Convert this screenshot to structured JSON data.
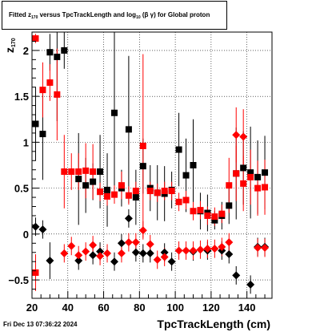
{
  "title": {
    "prefix": "Fitted",
    "z": "z",
    "z_sub": "170",
    "middle": "versus TpcTrackLength and log",
    "log_sub": "10",
    "beta_gamma": "(β γ)",
    "suffix": "for Global proton"
  },
  "timestamp": "Fri Dec 13 07:36:22 2024",
  "colors": {
    "red": "#ff0000",
    "black": "#000000",
    "grid": "#000000"
  },
  "chart_data": {
    "type": "scatter",
    "title": "Fitted z170 versus TpcTrackLength and log10(β γ) for Global proton",
    "xlabel": "TpcTrackLength (cm)",
    "ylabel": "z",
    "ylabel_sub": "170",
    "xlim": [
      20,
      154
    ],
    "ylim": [
      -0.7,
      2.2
    ],
    "xticks": [
      20,
      40,
      60,
      80,
      100,
      120,
      140
    ],
    "yticks": [
      -0.5,
      0,
      0.5,
      1,
      1.5,
      2
    ],
    "ytick_labels": [
      "−0.5",
      "0",
      "0.5",
      "1",
      "1.5",
      "2"
    ],
    "grid": true,
    "series": [
      {
        "color": "#000000",
        "marker": "square",
        "points": [
          {
            "x": 22,
            "y": 1.2,
            "err": 0.4
          },
          {
            "x": 26,
            "y": 1.09,
            "err": 0.5
          },
          {
            "x": 30,
            "y": 1.98,
            "err": 0.2
          },
          {
            "x": 34,
            "y": 1.93,
            "err": 0.7
          },
          {
            "x": 38,
            "y": 2.0,
            "err": 0.2
          },
          {
            "x": 46,
            "y": 0.6,
            "err": 0.5
          },
          {
            "x": 50,
            "y": 0.53,
            "err": 0.3
          },
          {
            "x": 54,
            "y": 0.57,
            "err": 0.2
          },
          {
            "x": 58,
            "y": 0.68,
            "err": 0.4
          },
          {
            "x": 62,
            "y": 0.48,
            "err": 0.4
          },
          {
            "x": 66,
            "y": 1.32,
            "err": 0.9
          },
          {
            "x": 70,
            "y": 0.5,
            "err": 0.2
          },
          {
            "x": 74,
            "y": 1.14,
            "err": 0.8
          },
          {
            "x": 78,
            "y": 0.4,
            "err": 0.3
          },
          {
            "x": 82,
            "y": 0.74,
            "err": 0.3
          },
          {
            "x": 86,
            "y": 0.5,
            "err": 0.25
          },
          {
            "x": 90,
            "y": 0.45,
            "err": 0.3
          },
          {
            "x": 94,
            "y": 0.44,
            "err": 0.3
          },
          {
            "x": 98,
            "y": 0.48,
            "err": 0.2
          },
          {
            "x": 102,
            "y": 0.92,
            "err": 0.4
          },
          {
            "x": 106,
            "y": 0.64,
            "err": 0.4
          },
          {
            "x": 110,
            "y": 0.75,
            "err": 0.5
          },
          {
            "x": 114,
            "y": 0.25,
            "err": 0.2
          },
          {
            "x": 118,
            "y": 0.23,
            "err": 0.2
          },
          {
            "x": 122,
            "y": 0.15,
            "err": 0.1
          },
          {
            "x": 126,
            "y": 0.2,
            "err": 0.15
          },
          {
            "x": 130,
            "y": 0.31,
            "err": 0.2
          },
          {
            "x": 134,
            "y": 0.66,
            "err": 0.5
          },
          {
            "x": 138,
            "y": 0.72,
            "err": 0.4
          },
          {
            "x": 142,
            "y": 0.67,
            "err": 0.5
          },
          {
            "x": 146,
            "y": 0.62,
            "err": 0.4
          },
          {
            "x": 150,
            "y": 0.67,
            "err": 0.4
          }
        ]
      },
      {
        "color": "#ff0000",
        "marker": "square",
        "points": [
          {
            "x": 22,
            "y": 2.13,
            "err": 0.05
          },
          {
            "x": 22,
            "y": -0.42,
            "err": 0.2
          },
          {
            "x": 26,
            "y": 1.57,
            "err": 0.3
          },
          {
            "x": 30,
            "y": 1.65,
            "err": 0.2
          },
          {
            "x": 34,
            "y": 1.52,
            "err": 0.5
          },
          {
            "x": 38,
            "y": 0.68,
            "err": 0.4
          },
          {
            "x": 42,
            "y": 0.68,
            "err": 0.2
          },
          {
            "x": 46,
            "y": 0.68,
            "err": 0.2
          },
          {
            "x": 50,
            "y": 0.69,
            "err": 0.3
          },
          {
            "x": 54,
            "y": 0.68,
            "err": 0.3
          },
          {
            "x": 58,
            "y": 0.46,
            "err": 0.1
          },
          {
            "x": 62,
            "y": 0.41,
            "err": 0.1
          },
          {
            "x": 66,
            "y": 0.43,
            "err": 0.1
          },
          {
            "x": 70,
            "y": 0.53,
            "err": 0.15
          },
          {
            "x": 74,
            "y": 0.42,
            "err": 0.1
          },
          {
            "x": 78,
            "y": 0.47,
            "err": 0.1
          },
          {
            "x": 82,
            "y": 0.96,
            "err": 1.0
          },
          {
            "x": 86,
            "y": 0.47,
            "err": 0.1
          },
          {
            "x": 90,
            "y": 0.45,
            "err": 0.1
          },
          {
            "x": 94,
            "y": 0.47,
            "err": 0.1
          },
          {
            "x": 98,
            "y": 0.47,
            "err": 0.1
          },
          {
            "x": 102,
            "y": 0.35,
            "err": 0.1
          },
          {
            "x": 106,
            "y": 0.37,
            "err": 0.1
          },
          {
            "x": 110,
            "y": 0.25,
            "err": 0.1
          },
          {
            "x": 114,
            "y": 0.26,
            "err": 0.1
          },
          {
            "x": 118,
            "y": 0.2,
            "err": 0.1
          },
          {
            "x": 122,
            "y": 0.19,
            "err": 0.1
          },
          {
            "x": 126,
            "y": 0.22,
            "err": 0.1
          },
          {
            "x": 130,
            "y": 0.53,
            "err": 0.3
          },
          {
            "x": 134,
            "y": 0.66,
            "err": 0.3
          },
          {
            "x": 138,
            "y": 0.55,
            "err": 0.3
          },
          {
            "x": 142,
            "y": 0.62,
            "err": 0.3
          },
          {
            "x": 146,
            "y": 0.5,
            "err": 0.3
          },
          {
            "x": 150,
            "y": 0.51,
            "err": 0.3
          }
        ]
      },
      {
        "color": "#000000",
        "marker": "diamond",
        "points": [
          {
            "x": 22,
            "y": 0.08,
            "err": 0.1
          },
          {
            "x": 26,
            "y": 0.05,
            "err": 0.1
          },
          {
            "x": 30,
            "y": -0.29,
            "err": 0.2
          },
          {
            "x": 46,
            "y": -0.29,
            "err": 0.1
          },
          {
            "x": 54,
            "y": -0.23,
            "err": 0.1
          },
          {
            "x": 58,
            "y": -0.19,
            "err": 0.1
          },
          {
            "x": 66,
            "y": -0.3,
            "err": 0.1
          },
          {
            "x": 70,
            "y": -0.1,
            "err": 0.1
          },
          {
            "x": 74,
            "y": 0.17,
            "err": 0.1
          },
          {
            "x": 78,
            "y": -0.2,
            "err": 0.1
          },
          {
            "x": 82,
            "y": -0.21,
            "err": 0.1
          },
          {
            "x": 86,
            "y": -0.21,
            "err": 0.1
          },
          {
            "x": 94,
            "y": -0.2,
            "err": 0.1
          },
          {
            "x": 98,
            "y": -0.3,
            "err": 0.1
          },
          {
            "x": 110,
            "y": -0.19,
            "err": 0.1
          },
          {
            "x": 118,
            "y": -0.18,
            "err": 0.1
          },
          {
            "x": 126,
            "y": -0.18,
            "err": 0.1
          },
          {
            "x": 130,
            "y": -0.22,
            "err": 0.1
          },
          {
            "x": 134,
            "y": -0.45,
            "err": 0.1
          },
          {
            "x": 142,
            "y": -0.55,
            "err": 0.1
          },
          {
            "x": 146,
            "y": -0.14,
            "err": 0.1
          },
          {
            "x": 150,
            "y": -0.14,
            "err": 0.1
          }
        ]
      },
      {
        "color": "#ff0000",
        "marker": "diamond",
        "points": [
          {
            "x": 38,
            "y": -0.21,
            "err": 0.1
          },
          {
            "x": 42,
            "y": -0.13,
            "err": 0.1
          },
          {
            "x": 46,
            "y": -0.23,
            "err": 0.1
          },
          {
            "x": 50,
            "y": -0.19,
            "err": 0.1
          },
          {
            "x": 54,
            "y": -0.12,
            "err": 0.1
          },
          {
            "x": 58,
            "y": -0.24,
            "err": 0.1
          },
          {
            "x": 62,
            "y": -0.21,
            "err": 0.1
          },
          {
            "x": 70,
            "y": -0.21,
            "err": 0.1
          },
          {
            "x": 74,
            "y": -0.09,
            "err": 0.1
          },
          {
            "x": 78,
            "y": -0.09,
            "err": 0.1
          },
          {
            "x": 82,
            "y": 0.04,
            "err": 0.1
          },
          {
            "x": 86,
            "y": -0.11,
            "err": 0.1
          },
          {
            "x": 90,
            "y": -0.28,
            "err": 0.1
          },
          {
            "x": 94,
            "y": -0.25,
            "err": 0.1
          },
          {
            "x": 102,
            "y": -0.18,
            "err": 0.1
          },
          {
            "x": 106,
            "y": -0.18,
            "err": 0.1
          },
          {
            "x": 110,
            "y": -0.18,
            "err": 0.1
          },
          {
            "x": 114,
            "y": -0.17,
            "err": 0.1
          },
          {
            "x": 118,
            "y": -0.16,
            "err": 0.1
          },
          {
            "x": 122,
            "y": -0.16,
            "err": 0.1
          },
          {
            "x": 126,
            "y": -0.14,
            "err": 0.1
          },
          {
            "x": 130,
            "y": -0.09,
            "err": 0.1
          },
          {
            "x": 134,
            "y": 1.08,
            "err": 0.3
          },
          {
            "x": 138,
            "y": 1.06,
            "err": 0.3
          },
          {
            "x": 146,
            "y": -0.15,
            "err": 0.1
          },
          {
            "x": 150,
            "y": -0.15,
            "err": 0.1
          }
        ]
      }
    ]
  }
}
